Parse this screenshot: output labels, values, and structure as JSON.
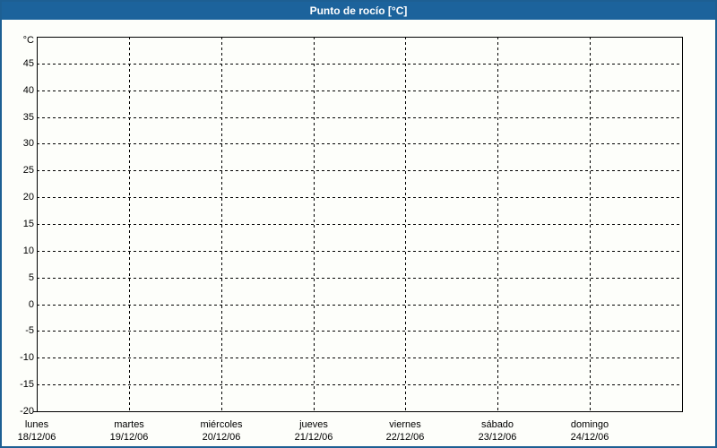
{
  "window": {
    "title": "Punto de rocío [°C]"
  },
  "colors": {
    "titlebar_bg": "#1c639c",
    "titlebar_text": "#ffffff",
    "window_border": "#1d5f93",
    "chart_bg": "#fdfefa",
    "grid_line": "#000000",
    "axis_line": "#000000",
    "label_text": "#000000"
  },
  "chart_data": {
    "type": "line",
    "title": "Punto de rocío [°C]",
    "ylabel": "°C",
    "unit_label": "°C",
    "ylim": [
      -20,
      50
    ],
    "y_tick_step": 5,
    "y_ticks": [
      45,
      40,
      35,
      30,
      25,
      20,
      15,
      10,
      5,
      0,
      -5,
      -10,
      -15,
      -20
    ],
    "x_categories": [
      {
        "day": "lunes",
        "date": "18/12/06"
      },
      {
        "day": "martes",
        "date": "19/12/06"
      },
      {
        "day": "miércoles",
        "date": "20/12/06"
      },
      {
        "day": "jueves",
        "date": "21/12/06"
      },
      {
        "day": "viernes",
        "date": "22/12/06"
      },
      {
        "day": "sábado",
        "date": "23/12/06"
      },
      {
        "day": "domingo",
        "date": "24/12/06"
      }
    ],
    "series": [],
    "grid": "dashed",
    "legend_position": "none"
  }
}
